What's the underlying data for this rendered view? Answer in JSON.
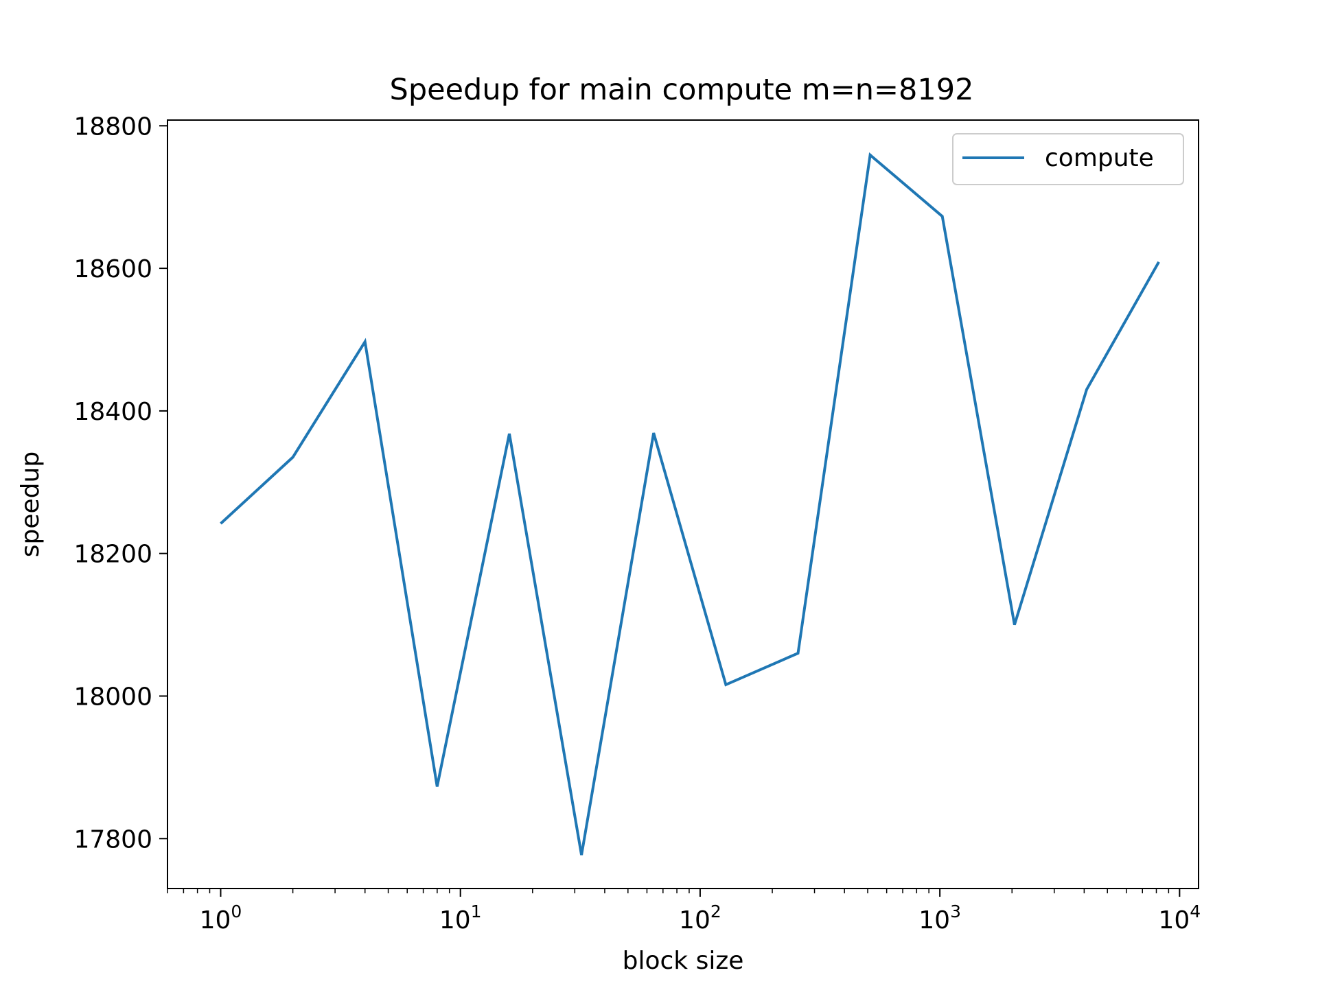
{
  "chart_data": {
    "type": "line",
    "title": "Speedup for main compute m=n=8192",
    "xlabel": "block size",
    "ylabel": "speedup",
    "xscale": "log",
    "xlim": [
      0.6,
      12000
    ],
    "ylim": [
      17730,
      18808
    ],
    "x_ticks": [
      {
        "value": 1,
        "base": "10",
        "exp": "0"
      },
      {
        "value": 10,
        "base": "10",
        "exp": "1"
      },
      {
        "value": 100,
        "base": "10",
        "exp": "2"
      },
      {
        "value": 1000,
        "base": "10",
        "exp": "3"
      },
      {
        "value": 10000,
        "base": "10",
        "exp": "4"
      }
    ],
    "y_ticks": [
      "17800",
      "18000",
      "18200",
      "18400",
      "18600",
      "18800"
    ],
    "grid": false,
    "legend_position": "top-right",
    "series": [
      {
        "name": "compute",
        "color": "#1f77b4",
        "x": [
          1,
          2,
          4,
          8,
          16,
          32,
          64,
          128,
          256,
          512,
          1024,
          2048,
          4096,
          8192
        ],
        "y": [
          18242,
          18335,
          18497,
          17873,
          18368,
          17777,
          18369,
          18016,
          18060,
          18759,
          18673,
          18100,
          18430,
          18609
        ]
      }
    ]
  }
}
